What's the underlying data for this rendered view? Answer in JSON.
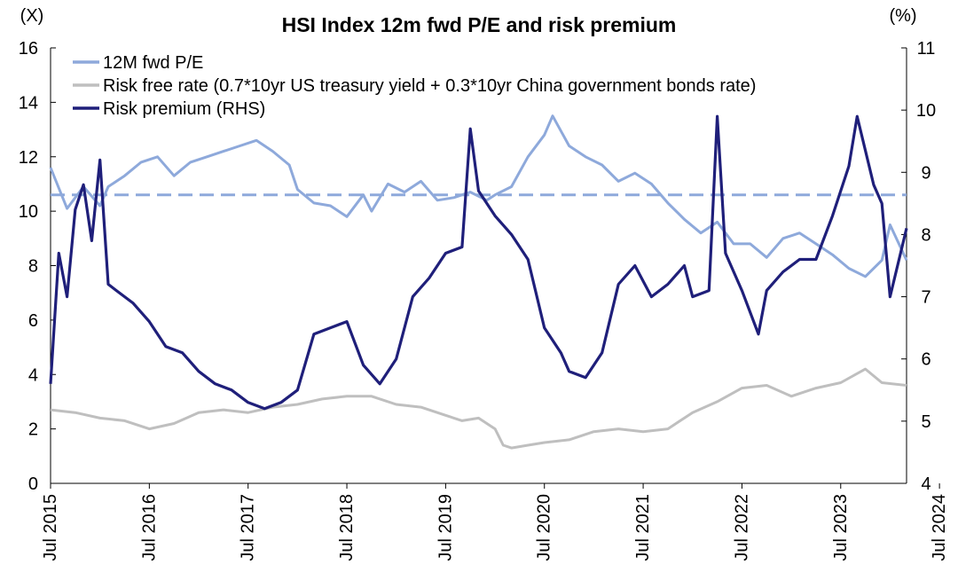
{
  "chart_data": {
    "type": "line",
    "title": "HSI Index 12m fwd P/E and risk premium",
    "y_left_unit": "(X)",
    "y_right_unit": "(%)",
    "y_left_range": [
      0,
      16
    ],
    "y_right_range": [
      4,
      11
    ],
    "y_left_ticks": [
      "0",
      "2",
      "4",
      "6",
      "8",
      "10",
      "12",
      "14",
      "16"
    ],
    "y_right_ticks": [
      "4",
      "5",
      "6",
      "7",
      "8",
      "9",
      "10",
      "11"
    ],
    "x_range": [
      "2015-07",
      "2024-03"
    ],
    "x_tick_labels": [
      "Jul 2015",
      "Jul 2016",
      "Jul 2017",
      "Jul 2018",
      "Jul 2019",
      "Jul 2020",
      "Jul 2021",
      "Jul 2022",
      "Jul 2023",
      "Jul 2024"
    ],
    "legend_placement": "top-left",
    "grid": false,
    "average_pe": 10.6,
    "series": [
      {
        "name": "12M fwd P/E",
        "axis": "left",
        "color": "#8EA9DB",
        "dates": [
          "2015-07",
          "2015-09",
          "2015-11",
          "2016-01",
          "2016-02",
          "2016-04",
          "2016-06",
          "2016-08",
          "2016-10",
          "2016-12",
          "2017-02",
          "2017-04",
          "2017-06",
          "2017-08",
          "2017-10",
          "2017-12",
          "2018-01",
          "2018-03",
          "2018-05",
          "2018-07",
          "2018-09",
          "2018-10",
          "2018-12",
          "2019-02",
          "2019-04",
          "2019-06",
          "2019-08",
          "2019-10",
          "2019-12",
          "2020-01",
          "2020-03",
          "2020-05",
          "2020-07",
          "2020-08",
          "2020-10",
          "2020-12",
          "2021-02",
          "2021-04",
          "2021-06",
          "2021-08",
          "2021-10",
          "2021-12",
          "2022-02",
          "2022-04",
          "2022-06",
          "2022-08",
          "2022-10",
          "2022-12",
          "2023-02",
          "2023-04",
          "2023-06",
          "2023-08",
          "2023-10",
          "2023-12",
          "2024-01",
          "2024-03"
        ],
        "values": [
          11.6,
          10.1,
          10.9,
          10.2,
          10.9,
          11.3,
          11.8,
          12.0,
          11.3,
          11.8,
          12.0,
          12.2,
          12.4,
          12.6,
          12.2,
          11.7,
          10.8,
          10.3,
          10.2,
          9.8,
          10.6,
          10.0,
          11.0,
          10.7,
          11.1,
          10.4,
          10.5,
          10.7,
          10.4,
          10.6,
          10.9,
          12.0,
          12.8,
          13.5,
          12.4,
          12.0,
          11.7,
          11.1,
          11.4,
          11.0,
          10.3,
          9.7,
          9.2,
          9.6,
          8.8,
          8.8,
          8.3,
          9.0,
          9.2,
          8.8,
          8.4,
          7.9,
          7.6,
          8.2,
          9.5,
          8.2
        ]
      },
      {
        "name": "Risk free rate (0.7*10yr US treasury yield + 0.3*10yr China government bonds rate)",
        "axis": "left",
        "color": "#BFBFBF",
        "dates": [
          "2015-07",
          "2015-10",
          "2016-01",
          "2016-04",
          "2016-07",
          "2016-10",
          "2017-01",
          "2017-04",
          "2017-07",
          "2017-10",
          "2018-01",
          "2018-04",
          "2018-07",
          "2018-10",
          "2019-01",
          "2019-04",
          "2019-07",
          "2019-09",
          "2019-11",
          "2020-01",
          "2020-02",
          "2020-03",
          "2020-05",
          "2020-07",
          "2020-10",
          "2021-01",
          "2021-04",
          "2021-07",
          "2021-10",
          "2022-01",
          "2022-04",
          "2022-07",
          "2022-10",
          "2023-01",
          "2023-04",
          "2023-07",
          "2023-10",
          "2023-12",
          "2024-03"
        ],
        "values": [
          2.7,
          2.6,
          2.4,
          2.3,
          2.0,
          2.2,
          2.6,
          2.7,
          2.6,
          2.8,
          2.9,
          3.1,
          3.2,
          3.2,
          2.9,
          2.8,
          2.5,
          2.3,
          2.4,
          2.0,
          1.4,
          1.3,
          1.4,
          1.5,
          1.6,
          1.9,
          2.0,
          1.9,
          2.0,
          2.6,
          3.0,
          3.5,
          3.6,
          3.2,
          3.5,
          3.7,
          4.2,
          3.7,
          3.6
        ]
      },
      {
        "name": "Risk premium (RHS)",
        "axis": "right",
        "color": "#1F1F7A",
        "dates": [
          "2015-07",
          "2015-08",
          "2015-09",
          "2015-10",
          "2015-11",
          "2015-12",
          "2016-01",
          "2016-02",
          "2016-03",
          "2016-05",
          "2016-07",
          "2016-09",
          "2016-11",
          "2017-01",
          "2017-03",
          "2017-05",
          "2017-07",
          "2017-09",
          "2017-11",
          "2018-01",
          "2018-03",
          "2018-05",
          "2018-07",
          "2018-09",
          "2018-11",
          "2019-01",
          "2019-03",
          "2019-05",
          "2019-07",
          "2019-09",
          "2019-10",
          "2019-11",
          "2020-01",
          "2020-03",
          "2020-05",
          "2020-07",
          "2020-09",
          "2020-10",
          "2020-12",
          "2021-02",
          "2021-04",
          "2021-06",
          "2021-08",
          "2021-10",
          "2021-12",
          "2022-01",
          "2022-03",
          "2022-04",
          "2022-05",
          "2022-07",
          "2022-09",
          "2022-10",
          "2022-12",
          "2023-02",
          "2023-04",
          "2023-06",
          "2023-08",
          "2023-09",
          "2023-11",
          "2023-12",
          "2024-01",
          "2024-03"
        ],
        "values": [
          5.6,
          7.7,
          7.0,
          8.4,
          8.8,
          7.9,
          9.2,
          7.2,
          7.1,
          6.9,
          6.6,
          6.2,
          6.1,
          5.8,
          5.6,
          5.5,
          5.3,
          5.2,
          5.3,
          5.5,
          6.4,
          6.5,
          6.6,
          5.9,
          5.6,
          6.0,
          7.0,
          7.3,
          7.7,
          7.8,
          9.7,
          8.7,
          8.3,
          8.0,
          7.6,
          6.5,
          6.1,
          5.8,
          5.7,
          6.1,
          7.2,
          7.5,
          7.0,
          7.2,
          7.5,
          7.0,
          7.1,
          9.9,
          7.7,
          7.1,
          6.4,
          7.1,
          7.4,
          7.6,
          7.6,
          8.3,
          9.1,
          9.9,
          8.8,
          8.5,
          7.0,
          8.1
        ]
      }
    ]
  }
}
